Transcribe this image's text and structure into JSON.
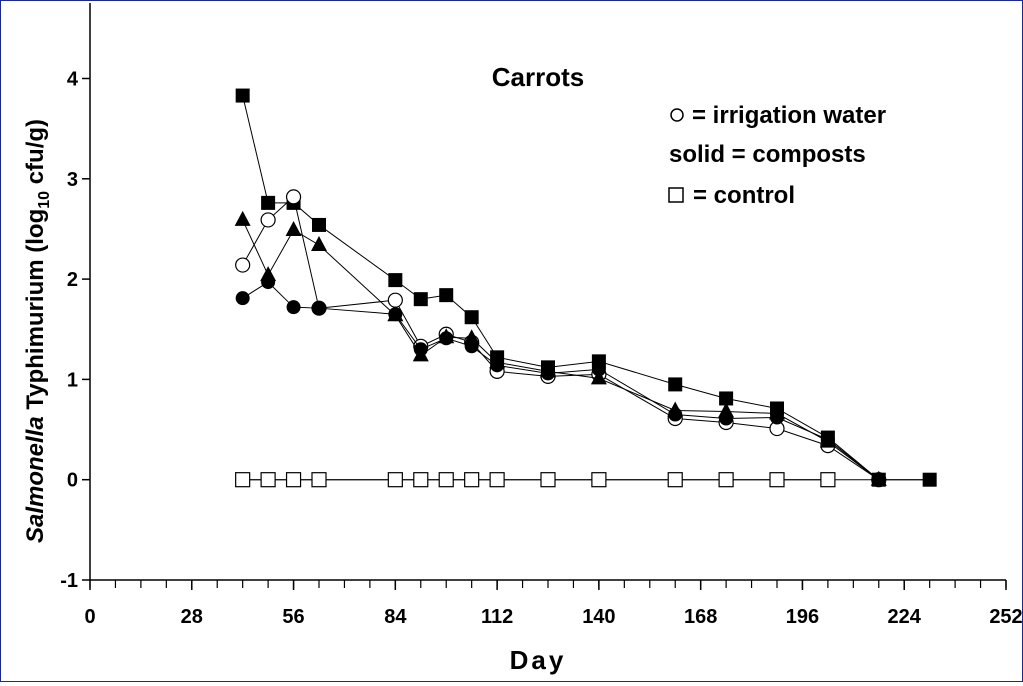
{
  "chart_data": {
    "type": "line",
    "title": "Carrots",
    "xlabel": "Day",
    "ylabel": {
      "italic": "Salmonella",
      "text": " Typhimurium (log",
      "sub": "10",
      "unit": " cfu/g)"
    },
    "xlim": [
      0,
      252
    ],
    "ylim": [
      -1,
      4.5
    ],
    "x_ticks": [
      "0",
      "28",
      "56",
      "84",
      "112",
      "140",
      "168",
      "196",
      "224",
      "252"
    ],
    "x_tick_values": [
      0,
      28,
      56,
      84,
      112,
      140,
      168,
      196,
      224,
      252
    ],
    "x_minor_step": 7,
    "y_ticks": [
      "-1",
      "0",
      "1",
      "2",
      "3",
      "4"
    ],
    "y_tick_values": [
      -1,
      0,
      1,
      2,
      3,
      4
    ],
    "legend": {
      "irrigation": "= irrigation water",
      "solid": "solid = composts",
      "control": "= control"
    },
    "series": [
      {
        "marker": "square-filled",
        "x": [
          42,
          49,
          56,
          63,
          84,
          91,
          98,
          105,
          112,
          126,
          140,
          161,
          175,
          189,
          203,
          217,
          231
        ],
        "y": [
          3.83,
          2.76,
          2.76,
          2.54,
          1.99,
          1.8,
          1.84,
          1.62,
          1.22,
          1.12,
          1.18,
          0.95,
          0.81,
          0.71,
          0.42,
          0,
          0
        ]
      },
      {
        "marker": "circle-open",
        "x": [
          42,
          49,
          56,
          63,
          84,
          91,
          98,
          105,
          112,
          126,
          140,
          161,
          175,
          189,
          203,
          217
        ],
        "y": [
          2.14,
          2.59,
          2.82,
          1.71,
          1.79,
          1.33,
          1.45,
          1.37,
          1.08,
          1.03,
          1.05,
          0.61,
          0.57,
          0.51,
          0.34,
          0
        ]
      },
      {
        "marker": "triangle-filled",
        "x": [
          42,
          49,
          56,
          63,
          84,
          91,
          98,
          105,
          112,
          126,
          140,
          161,
          175,
          189,
          203,
          217
        ],
        "y": [
          2.59,
          2.04,
          2.49,
          2.34,
          1.64,
          1.24,
          1.42,
          1.41,
          1.17,
          1.08,
          1.01,
          0.69,
          0.68,
          0.66,
          0.38,
          0
        ]
      },
      {
        "marker": "circle-filled",
        "x": [
          42,
          49,
          56,
          63,
          84,
          91,
          98,
          105,
          112,
          126,
          140,
          161,
          175,
          189,
          203,
          217
        ],
        "y": [
          1.81,
          1.97,
          1.72,
          1.71,
          1.65,
          1.3,
          1.41,
          1.33,
          1.14,
          1.06,
          1.1,
          0.65,
          0.61,
          0.62,
          0.4,
          0
        ]
      },
      {
        "marker": "square-open",
        "x": [
          42,
          49,
          56,
          63,
          84,
          91,
          98,
          105,
          112,
          126,
          140,
          161,
          175,
          189,
          203
        ],
        "y": [
          0,
          0,
          0,
          0,
          0,
          0,
          0,
          0,
          0,
          0,
          0,
          0,
          0,
          0,
          0
        ]
      }
    ]
  }
}
